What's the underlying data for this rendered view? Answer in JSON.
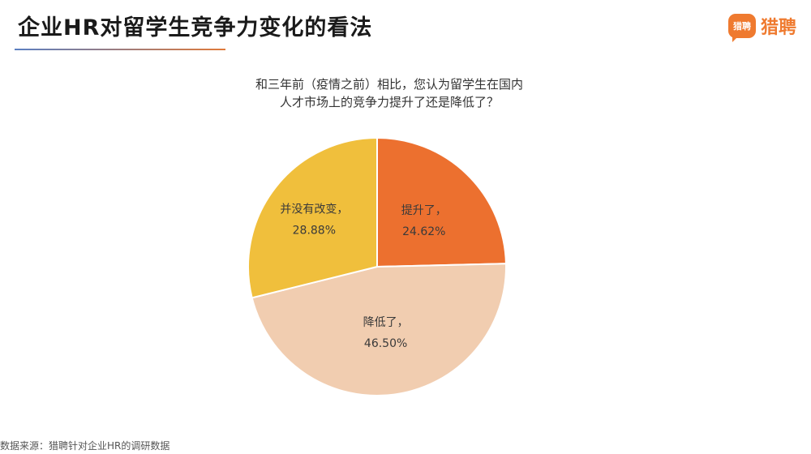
{
  "header": {
    "title": "企业HR对留学生竞争力变化的看法",
    "brand_badge": "猎聘",
    "brand_name": "猎聘"
  },
  "question": {
    "line1": "和三年前（疫情之前）相比，您认为留学生在国内",
    "line2": "人才市场上的竞争力提升了还是降低了？"
  },
  "chart_data": {
    "type": "pie",
    "title": "和三年前（疫情之前）相比，您认为留学生在国内人才市场上的竞争力提升了还是降低了？",
    "unit": "%",
    "slices": [
      {
        "label": "提升了，",
        "value": 24.62,
        "display": "24.62%",
        "color": "#ec702f"
      },
      {
        "label": "降低了，",
        "value": 46.5,
        "display": "46.50%",
        "color": "#f1cdb0"
      },
      {
        "label": "并没有改变，",
        "value": 28.88,
        "display": "28.88%",
        "color": "#f0bf3c"
      }
    ]
  },
  "footer": {
    "source": "数据来源：猎聘针对企业HR的调研数据"
  }
}
